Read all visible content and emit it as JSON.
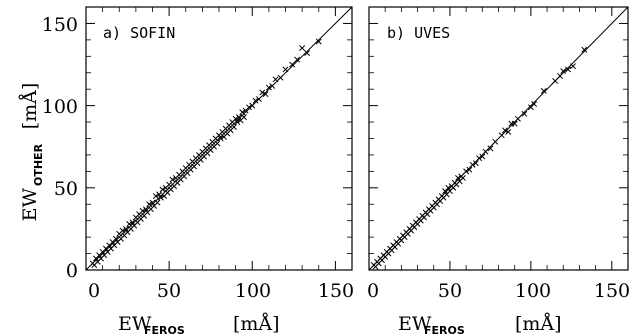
{
  "chart_data": [
    {
      "type": "scatter",
      "panel_label": "a) SOFIN",
      "marker": "x",
      "xlim": [
        0,
        160
      ],
      "ylim": [
        0,
        160
      ],
      "x_ticks": [
        0,
        50,
        100,
        150
      ],
      "y_ticks": [
        0,
        50,
        100,
        150
      ],
      "reference_line": "y = x",
      "points": [
        [
          4,
          4
        ],
        [
          5,
          3
        ],
        [
          6,
          7
        ],
        [
          7,
          5
        ],
        [
          8,
          9
        ],
        [
          9,
          7
        ],
        [
          10,
          11
        ],
        [
          11,
          9
        ],
        [
          12,
          13
        ],
        [
          13,
          11
        ],
        [
          14,
          15
        ],
        [
          15,
          13
        ],
        [
          16,
          17
        ],
        [
          17,
          15
        ],
        [
          18,
          19
        ],
        [
          19,
          17
        ],
        [
          20,
          22
        ],
        [
          21,
          19
        ],
        [
          22,
          24
        ],
        [
          23,
          21
        ],
        [
          24,
          25
        ],
        [
          25,
          23
        ],
        [
          26,
          28
        ],
        [
          27,
          25
        ],
        [
          28,
          29
        ],
        [
          29,
          27
        ],
        [
          30,
          32
        ],
        [
          31,
          29
        ],
        [
          32,
          34
        ],
        [
          33,
          31
        ],
        [
          34,
          36
        ],
        [
          35,
          33
        ],
        [
          36,
          37
        ],
        [
          37,
          35
        ],
        [
          38,
          40
        ],
        [
          39,
          37
        ],
        [
          40,
          41
        ],
        [
          41,
          39
        ],
        [
          42,
          45
        ],
        [
          43,
          41
        ],
        [
          44,
          46
        ],
        [
          45,
          44
        ],
        [
          46,
          49
        ],
        [
          47,
          45
        ],
        [
          48,
          50
        ],
        [
          49,
          47
        ],
        [
          50,
          52
        ],
        [
          51,
          49
        ],
        [
          52,
          55
        ],
        [
          53,
          51
        ],
        [
          54,
          56
        ],
        [
          55,
          53
        ],
        [
          56,
          58
        ],
        [
          57,
          55
        ],
        [
          58,
          60
        ],
        [
          59,
          57
        ],
        [
          60,
          62
        ],
        [
          61,
          59
        ],
        [
          62,
          64
        ],
        [
          63,
          61
        ],
        [
          64,
          66
        ],
        [
          65,
          63
        ],
        [
          66,
          68
        ],
        [
          67,
          65
        ],
        [
          68,
          70
        ],
        [
          69,
          67
        ],
        [
          70,
          72
        ],
        [
          71,
          69
        ],
        [
          72,
          74
        ],
        [
          73,
          71
        ],
        [
          74,
          76
        ],
        [
          75,
          73
        ],
        [
          76,
          78
        ],
        [
          77,
          75
        ],
        [
          78,
          80
        ],
        [
          79,
          77
        ],
        [
          80,
          82
        ],
        [
          81,
          80
        ],
        [
          82,
          84
        ],
        [
          83,
          81
        ],
        [
          84,
          86
        ],
        [
          85,
          83
        ],
        [
          86,
          88
        ],
        [
          87,
          85
        ],
        [
          88,
          90
        ],
        [
          89,
          87
        ],
        [
          90,
          92
        ],
        [
          91,
          90
        ],
        [
          92,
          93
        ],
        [
          93,
          91
        ],
        [
          94,
          96
        ],
        [
          95,
          93
        ],
        [
          96,
          97
        ],
        [
          98,
          99
        ],
        [
          100,
          100
        ],
        [
          102,
          103
        ],
        [
          104,
          104
        ],
        [
          106,
          108
        ],
        [
          108,
          107
        ],
        [
          110,
          111
        ],
        [
          112,
          112
        ],
        [
          114,
          116
        ],
        [
          117,
          117
        ],
        [
          120,
          122
        ],
        [
          124,
          125
        ],
        [
          127,
          128
        ],
        [
          130,
          135
        ],
        [
          133,
          132
        ],
        [
          140,
          139
        ]
      ]
    },
    {
      "type": "scatter",
      "panel_label": "b) UVES",
      "marker": "x",
      "xlim": [
        0,
        160
      ],
      "ylim": [
        0,
        160
      ],
      "x_ticks": [
        0,
        50,
        100,
        150
      ],
      "y_ticks": [
        0,
        50,
        100,
        150
      ],
      "reference_line": "y = x",
      "points": [
        [
          3,
          3
        ],
        [
          4,
          2
        ],
        [
          5,
          5
        ],
        [
          6,
          4
        ],
        [
          7,
          7
        ],
        [
          8,
          6
        ],
        [
          9,
          9
        ],
        [
          10,
          8
        ],
        [
          11,
          11
        ],
        [
          12,
          10
        ],
        [
          13,
          13
        ],
        [
          14,
          12
        ],
        [
          15,
          15
        ],
        [
          16,
          14
        ],
        [
          17,
          17
        ],
        [
          18,
          16
        ],
        [
          19,
          19
        ],
        [
          20,
          18
        ],
        [
          21,
          21
        ],
        [
          22,
          20
        ],
        [
          23,
          23
        ],
        [
          24,
          22
        ],
        [
          25,
          25
        ],
        [
          26,
          24
        ],
        [
          27,
          27
        ],
        [
          28,
          26
        ],
        [
          29,
          29
        ],
        [
          30,
          28
        ],
        [
          31,
          31
        ],
        [
          32,
          30
        ],
        [
          33,
          33
        ],
        [
          34,
          32
        ],
        [
          35,
          35
        ],
        [
          36,
          34
        ],
        [
          37,
          37
        ],
        [
          38,
          36
        ],
        [
          39,
          39
        ],
        [
          40,
          38
        ],
        [
          41,
          41
        ],
        [
          42,
          40
        ],
        [
          43,
          43
        ],
        [
          44,
          42
        ],
        [
          45,
          45
        ],
        [
          46,
          44
        ],
        [
          47,
          48
        ],
        [
          48,
          46
        ],
        [
          49,
          50
        ],
        [
          50,
          48
        ],
        [
          51,
          51
        ],
        [
          52,
          50
        ],
        [
          53,
          53
        ],
        [
          54,
          52
        ],
        [
          55,
          56
        ],
        [
          56,
          54
        ],
        [
          57,
          57
        ],
        [
          58,
          56
        ],
        [
          60,
          60
        ],
        [
          62,
          61
        ],
        [
          64,
          64
        ],
        [
          66,
          65
        ],
        [
          68,
          68
        ],
        [
          70,
          69
        ],
        [
          72,
          72
        ],
        [
          75,
          74
        ],
        [
          78,
          78
        ],
        [
          82,
          82
        ],
        [
          84,
          85
        ],
        [
          86,
          84
        ],
        [
          88,
          89
        ],
        [
          90,
          89
        ],
        [
          92,
          92
        ],
        [
          96,
          95
        ],
        [
          100,
          99
        ],
        [
          102,
          101
        ],
        [
          108,
          109
        ],
        [
          115,
          115
        ],
        [
          118,
          118
        ],
        [
          120,
          121
        ],
        [
          123,
          122
        ],
        [
          126,
          124
        ],
        [
          133,
          134
        ]
      ]
    }
  ],
  "axes_labels": {
    "y_main": "EW",
    "y_sub": "OTHER",
    "y_unit": "[mÅ]",
    "x_main": "EW",
    "x_sub": "FEROS",
    "x_unit": "[mÅ]"
  },
  "tick_labels": {
    "left": [
      "0",
      "50",
      "100",
      "150"
    ],
    "bottom_a": [
      "0",
      "50",
      "100",
      "150"
    ],
    "bottom_b": [
      "0",
      "50",
      "100",
      "150"
    ]
  }
}
